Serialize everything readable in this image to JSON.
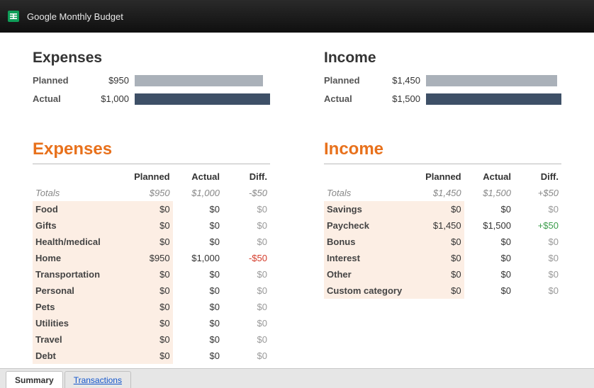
{
  "window": {
    "title": "Google Monthly Budget"
  },
  "bars": {
    "planned_color": "#aab1b9",
    "actual_color": "#3e5067",
    "expenses": {
      "heading": "Expenses",
      "planned_label": "Planned",
      "actual_label": "Actual",
      "planned_value": "$950",
      "actual_value": "$1,000",
      "planned_pct": 95,
      "actual_pct": 100,
      "max_pct": 100
    },
    "income": {
      "heading": "Income",
      "planned_label": "Planned",
      "actual_label": "Actual",
      "planned_value": "$1,450",
      "actual_value": "$1,500",
      "planned_pct": 96.7,
      "actual_pct": 100,
      "max_pct": 100
    }
  },
  "tables": {
    "headers": {
      "planned": "Planned",
      "actual": "Actual",
      "diff": "Diff."
    },
    "totals_label": "Totals",
    "expenses": {
      "title": "Expenses",
      "totals": {
        "planned": "$950",
        "actual": "$1,000",
        "diff": "-$50",
        "diff_class": "neg"
      },
      "rows": [
        {
          "name": "Food",
          "planned": "$0",
          "actual": "$0",
          "diff": "$0",
          "diff_class": "muted"
        },
        {
          "name": "Gifts",
          "planned": "$0",
          "actual": "$0",
          "diff": "$0",
          "diff_class": "muted"
        },
        {
          "name": "Health/medical",
          "planned": "$0",
          "actual": "$0",
          "diff": "$0",
          "diff_class": "muted"
        },
        {
          "name": "Home",
          "planned": "$950",
          "actual": "$1,000",
          "diff": "-$50",
          "diff_class": "neg"
        },
        {
          "name": "Transportation",
          "planned": "$0",
          "actual": "$0",
          "diff": "$0",
          "diff_class": "muted"
        },
        {
          "name": "Personal",
          "planned": "$0",
          "actual": "$0",
          "diff": "$0",
          "diff_class": "muted"
        },
        {
          "name": "Pets",
          "planned": "$0",
          "actual": "$0",
          "diff": "$0",
          "diff_class": "muted"
        },
        {
          "name": "Utilities",
          "planned": "$0",
          "actual": "$0",
          "diff": "$0",
          "diff_class": "muted"
        },
        {
          "name": "Travel",
          "planned": "$0",
          "actual": "$0",
          "diff": "$0",
          "diff_class": "muted"
        },
        {
          "name": "Debt",
          "planned": "$0",
          "actual": "$0",
          "diff": "$0",
          "diff_class": "muted"
        }
      ]
    },
    "income": {
      "title": "Income",
      "totals": {
        "planned": "$1,450",
        "actual": "$1,500",
        "diff": "+$50",
        "diff_class": "pos"
      },
      "rows": [
        {
          "name": "Savings",
          "planned": "$0",
          "actual": "$0",
          "diff": "$0",
          "diff_class": "muted"
        },
        {
          "name": "Paycheck",
          "planned": "$1,450",
          "actual": "$1,500",
          "diff": "+$50",
          "diff_class": "pos"
        },
        {
          "name": "Bonus",
          "planned": "$0",
          "actual": "$0",
          "diff": "$0",
          "diff_class": "muted"
        },
        {
          "name": "Interest",
          "planned": "$0",
          "actual": "$0",
          "diff": "$0",
          "diff_class": "muted"
        },
        {
          "name": "Other",
          "planned": "$0",
          "actual": "$0",
          "diff": "$0",
          "diff_class": "muted"
        },
        {
          "name": "Custom category",
          "planned": "$0",
          "actual": "$0",
          "diff": "$0",
          "diff_class": "muted"
        }
      ]
    }
  },
  "tabs": {
    "summary": "Summary",
    "transactions": "Transactions"
  }
}
